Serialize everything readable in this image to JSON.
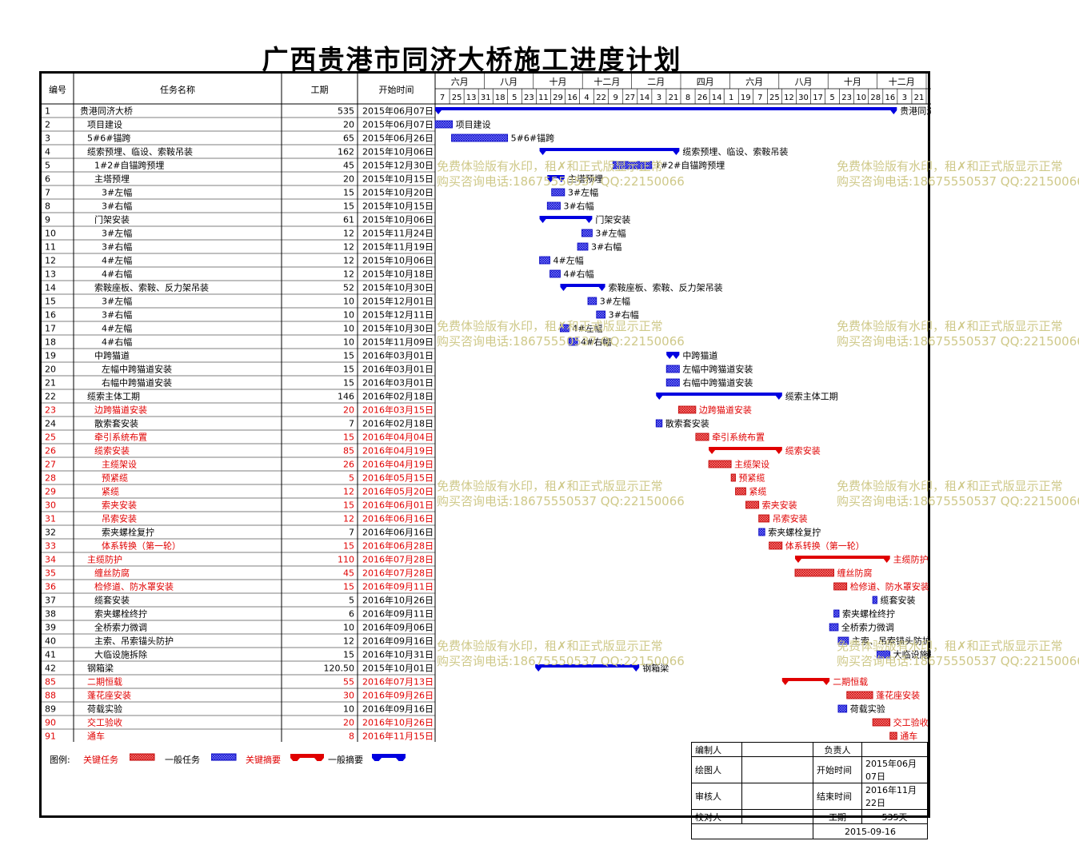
{
  "title": "广西贵港市同济大桥施工进度计划",
  "header": {
    "col_id": "编号",
    "col_name": "任务名称",
    "col_duration": "工期",
    "col_start": "开始时间",
    "months": [
      "六月",
      "八月",
      "十月",
      "十二月",
      "二月",
      "四月",
      "六月",
      "八月",
      "十月",
      "十二月"
    ],
    "days": [
      "7",
      "25",
      "13",
      "31",
      "18",
      "5",
      "23",
      "11",
      "29",
      "16",
      "4",
      "22",
      "9",
      "27",
      "14",
      "3",
      "21",
      "8",
      "26",
      "14",
      "1",
      "19",
      "7",
      "25",
      "12",
      "30",
      "17",
      "5",
      "23",
      "10",
      "28",
      "16",
      "3",
      "21"
    ]
  },
  "chart_data": {
    "type": "gantt",
    "timeline_start": "2015-06-07",
    "timeline_end": "2016-12-27",
    "tasks": [
      {
        "id": "1",
        "name": "贵港同济大桥",
        "level": 0,
        "duration": "535",
        "start": "2015年06月07日",
        "start_iso": "2015-06-07",
        "days": 535,
        "kind": "summary",
        "critical": false
      },
      {
        "id": "2",
        "name": "项目建设",
        "level": 1,
        "duration": "20",
        "start": "2015年06月07日",
        "start_iso": "2015-06-07",
        "days": 20,
        "kind": "task",
        "critical": false
      },
      {
        "id": "3",
        "name": "5#6#锚跨",
        "level": 1,
        "duration": "65",
        "start": "2015年06月26日",
        "start_iso": "2015-06-26",
        "days": 65,
        "kind": "task",
        "critical": false
      },
      {
        "id": "4",
        "name": "缆索预埋、临设、索鞍吊装",
        "level": 1,
        "duration": "162",
        "start": "2015年10月06日",
        "start_iso": "2015-10-06",
        "days": 162,
        "kind": "summary",
        "critical": false
      },
      {
        "id": "5",
        "name": "1#2#自锚跨预埋",
        "level": 2,
        "duration": "45",
        "start": "2015年12月30日",
        "start_iso": "2015-12-30",
        "days": 45,
        "kind": "task",
        "critical": false
      },
      {
        "id": "6",
        "name": "主塔预埋",
        "level": 2,
        "duration": "20",
        "start": "2015年10月15日",
        "start_iso": "2015-10-15",
        "days": 20,
        "kind": "summary",
        "critical": false
      },
      {
        "id": "7",
        "name": "3#左幅",
        "level": 3,
        "duration": "15",
        "start": "2015年10月20日",
        "start_iso": "2015-10-20",
        "days": 15,
        "kind": "task",
        "critical": false
      },
      {
        "id": "8",
        "name": "3#右幅",
        "level": 3,
        "duration": "15",
        "start": "2015年10月15日",
        "start_iso": "2015-10-15",
        "days": 15,
        "kind": "task",
        "critical": false
      },
      {
        "id": "9",
        "name": "门架安装",
        "level": 2,
        "duration": "61",
        "start": "2015年10月06日",
        "start_iso": "2015-10-06",
        "days": 61,
        "kind": "summary",
        "critical": false
      },
      {
        "id": "10",
        "name": "3#左幅",
        "level": 3,
        "duration": "12",
        "start": "2015年11月24日",
        "start_iso": "2015-11-24",
        "days": 12,
        "kind": "task",
        "critical": false
      },
      {
        "id": "11",
        "name": "3#右幅",
        "level": 3,
        "duration": "12",
        "start": "2015年11月19日",
        "start_iso": "2015-11-19",
        "days": 12,
        "kind": "task",
        "critical": false
      },
      {
        "id": "12",
        "name": "4#左幅",
        "level": 3,
        "duration": "12",
        "start": "2015年10月06日",
        "start_iso": "2015-10-06",
        "days": 12,
        "kind": "task",
        "critical": false
      },
      {
        "id": "13",
        "name": "4#右幅",
        "level": 3,
        "duration": "12",
        "start": "2015年10月18日",
        "start_iso": "2015-10-18",
        "days": 12,
        "kind": "task",
        "critical": false
      },
      {
        "id": "14",
        "name": "索鞍座板、索鞍、反力架吊装",
        "level": 2,
        "duration": "52",
        "start": "2015年10月30日",
        "start_iso": "2015-10-30",
        "days": 52,
        "kind": "summary",
        "critical": false
      },
      {
        "id": "15",
        "name": "3#左幅",
        "level": 3,
        "duration": "10",
        "start": "2015年12月01日",
        "start_iso": "2015-12-01",
        "days": 10,
        "kind": "task",
        "critical": false
      },
      {
        "id": "16",
        "name": "3#右幅",
        "level": 3,
        "duration": "10",
        "start": "2015年12月11日",
        "start_iso": "2015-12-11",
        "days": 10,
        "kind": "task",
        "critical": false
      },
      {
        "id": "17",
        "name": "4#左幅",
        "level": 3,
        "duration": "10",
        "start": "2015年10月30日",
        "start_iso": "2015-10-30",
        "days": 10,
        "kind": "task",
        "critical": false
      },
      {
        "id": "18",
        "name": "4#右幅",
        "level": 3,
        "duration": "10",
        "start": "2015年11月09日",
        "start_iso": "2015-11-09",
        "days": 10,
        "kind": "task",
        "critical": false
      },
      {
        "id": "19",
        "name": "中跨猫道",
        "level": 2,
        "duration": "15",
        "start": "2016年03月01日",
        "start_iso": "2016-03-01",
        "days": 15,
        "kind": "summary",
        "critical": false
      },
      {
        "id": "20",
        "name": "左幅中跨猫道安装",
        "level": 3,
        "duration": "15",
        "start": "2016年03月01日",
        "start_iso": "2016-03-01",
        "days": 15,
        "kind": "task",
        "critical": false
      },
      {
        "id": "21",
        "name": "右幅中跨猫道安装",
        "level": 3,
        "duration": "15",
        "start": "2016年03月01日",
        "start_iso": "2016-03-01",
        "days": 15,
        "kind": "task",
        "critical": false
      },
      {
        "id": "22",
        "name": "缆索主体工期",
        "level": 1,
        "duration": "146",
        "start": "2016年02月18日",
        "start_iso": "2016-02-18",
        "days": 146,
        "kind": "summary",
        "critical": false
      },
      {
        "id": "23",
        "name": "边跨猫道安装",
        "level": 2,
        "duration": "20",
        "start": "2016年03月15日",
        "start_iso": "2016-03-15",
        "days": 20,
        "kind": "task",
        "critical": true
      },
      {
        "id": "24",
        "name": "散索套安装",
        "level": 2,
        "duration": "7",
        "start": "2016年02月18日",
        "start_iso": "2016-02-18",
        "days": 7,
        "kind": "task",
        "critical": false
      },
      {
        "id": "25",
        "name": "牵引系统布置",
        "level": 2,
        "duration": "15",
        "start": "2016年04月04日",
        "start_iso": "2016-04-04",
        "days": 15,
        "kind": "task",
        "critical": true
      },
      {
        "id": "26",
        "name": "缆索安装",
        "level": 2,
        "duration": "85",
        "start": "2016年04月19日",
        "start_iso": "2016-04-19",
        "days": 85,
        "kind": "summary",
        "critical": true
      },
      {
        "id": "27",
        "name": "主缆架设",
        "level": 3,
        "duration": "26",
        "start": "2016年04月19日",
        "start_iso": "2016-04-19",
        "days": 26,
        "kind": "task",
        "critical": true
      },
      {
        "id": "28",
        "name": "预紧缆",
        "level": 3,
        "duration": "5",
        "start": "2016年05月15日",
        "start_iso": "2016-05-15",
        "days": 5,
        "kind": "task",
        "critical": true
      },
      {
        "id": "29",
        "name": "紧缆",
        "level": 3,
        "duration": "12",
        "start": "2016年05月20日",
        "start_iso": "2016-05-20",
        "days": 12,
        "kind": "task",
        "critical": true
      },
      {
        "id": "30",
        "name": "索夹安装",
        "level": 3,
        "duration": "15",
        "start": "2016年06月01日",
        "start_iso": "2016-06-01",
        "days": 15,
        "kind": "task",
        "critical": true
      },
      {
        "id": "31",
        "name": "吊索安装",
        "level": 3,
        "duration": "12",
        "start": "2016年06月16日",
        "start_iso": "2016-06-16",
        "days": 12,
        "kind": "task",
        "critical": true
      },
      {
        "id": "32",
        "name": "索夹螺栓复拧",
        "level": 3,
        "duration": "7",
        "start": "2016年06月16日",
        "start_iso": "2016-06-16",
        "days": 7,
        "kind": "task",
        "critical": false
      },
      {
        "id": "33",
        "name": "体系转换（第一轮）",
        "level": 3,
        "duration": "15",
        "start": "2016年06月28日",
        "start_iso": "2016-06-28",
        "days": 15,
        "kind": "task",
        "critical": true
      },
      {
        "id": "34",
        "name": "主缆防护",
        "level": 1,
        "duration": "110",
        "start": "2016年07月28日",
        "start_iso": "2016-07-28",
        "days": 110,
        "kind": "summary",
        "critical": true
      },
      {
        "id": "35",
        "name": "缠丝防腐",
        "level": 2,
        "duration": "45",
        "start": "2016年07月28日",
        "start_iso": "2016-07-28",
        "days": 45,
        "kind": "task",
        "critical": true
      },
      {
        "id": "36",
        "name": "检修道、防水罩安装",
        "level": 2,
        "duration": "15",
        "start": "2016年09月11日",
        "start_iso": "2016-09-11",
        "days": 15,
        "kind": "task",
        "critical": true
      },
      {
        "id": "37",
        "name": "缆套安装",
        "level": 2,
        "duration": "5",
        "start": "2016年10月26日",
        "start_iso": "2016-10-26",
        "days": 5,
        "kind": "task",
        "critical": false
      },
      {
        "id": "38",
        "name": "索夹螺栓终拧",
        "level": 2,
        "duration": "6",
        "start": "2016年09月11日",
        "start_iso": "2016-09-11",
        "days": 6,
        "kind": "task",
        "critical": false
      },
      {
        "id": "39",
        "name": "全桥索力微调",
        "level": 2,
        "duration": "10",
        "start": "2016年09月06日",
        "start_iso": "2016-09-06",
        "days": 10,
        "kind": "task",
        "critical": false
      },
      {
        "id": "40",
        "name": "主索、吊索锚头防护",
        "level": 2,
        "duration": "12",
        "start": "2016年09月16日",
        "start_iso": "2016-09-16",
        "days": 12,
        "kind": "task",
        "critical": false
      },
      {
        "id": "41",
        "name": "大临设施拆除",
        "level": 2,
        "duration": "15",
        "start": "2016年10月31日",
        "start_iso": "2016-10-31",
        "days": 15,
        "kind": "task",
        "critical": false
      },
      {
        "id": "42",
        "name": "钢箱梁",
        "level": 1,
        "duration": "120.50",
        "start": "2015年10月01日",
        "start_iso": "2015-10-01",
        "days": 120.5,
        "kind": "summary",
        "critical": false
      },
      {
        "id": "85",
        "name": "二期恒载",
        "level": 1,
        "duration": "55",
        "start": "2016年07月13日",
        "start_iso": "2016-07-13",
        "days": 55,
        "kind": "summary",
        "critical": true
      },
      {
        "id": "88",
        "name": "蓬花座安装",
        "level": 1,
        "duration": "30",
        "start": "2016年09月26日",
        "start_iso": "2016-09-26",
        "days": 30,
        "kind": "task",
        "critical": true
      },
      {
        "id": "89",
        "name": "荷载实验",
        "level": 1,
        "duration": "10",
        "start": "2016年09月16日",
        "start_iso": "2016-09-16",
        "days": 10,
        "kind": "task",
        "critical": false
      },
      {
        "id": "90",
        "name": "交工验收",
        "level": 1,
        "duration": "20",
        "start": "2016年10月26日",
        "start_iso": "2016-10-26",
        "days": 20,
        "kind": "task",
        "critical": true
      },
      {
        "id": "91",
        "name": "通车",
        "level": 1,
        "duration": "8",
        "start": "2016年11月15日",
        "start_iso": "2016-11-15",
        "days": 8,
        "kind": "task",
        "critical": true
      }
    ]
  },
  "legend": {
    "label": "图例:",
    "critical_task": "关键任务",
    "normal_task": "一般任务",
    "critical_summary": "关键摘要",
    "normal_summary": "一般摘要"
  },
  "signoff": {
    "prepared_label": "编制人",
    "prepared_value": "",
    "drawn_label": "绘图人",
    "drawn_value": "",
    "reviewed_label": "审核人",
    "reviewed_value": "",
    "checked_label": "校对人",
    "checked_value": "",
    "owner_label": "负责人",
    "owner_value": "",
    "start_label": "开始时间",
    "start_value": "2015年06月07日",
    "end_label": "结束时间",
    "end_value": "2016年11月22日",
    "duration_label": "工期",
    "duration_value": "535天",
    "date": "2015-09-16"
  },
  "watermark": {
    "line1": "免费体验版有水印，租✗和正式版显示正常",
    "line2": "购买咨询电话:18675550537 QQ:22150066"
  },
  "colors": {
    "normal": "#0000e0",
    "critical": "#e00000",
    "text_critical": "#e00000",
    "watermark": "#cfc98a"
  }
}
